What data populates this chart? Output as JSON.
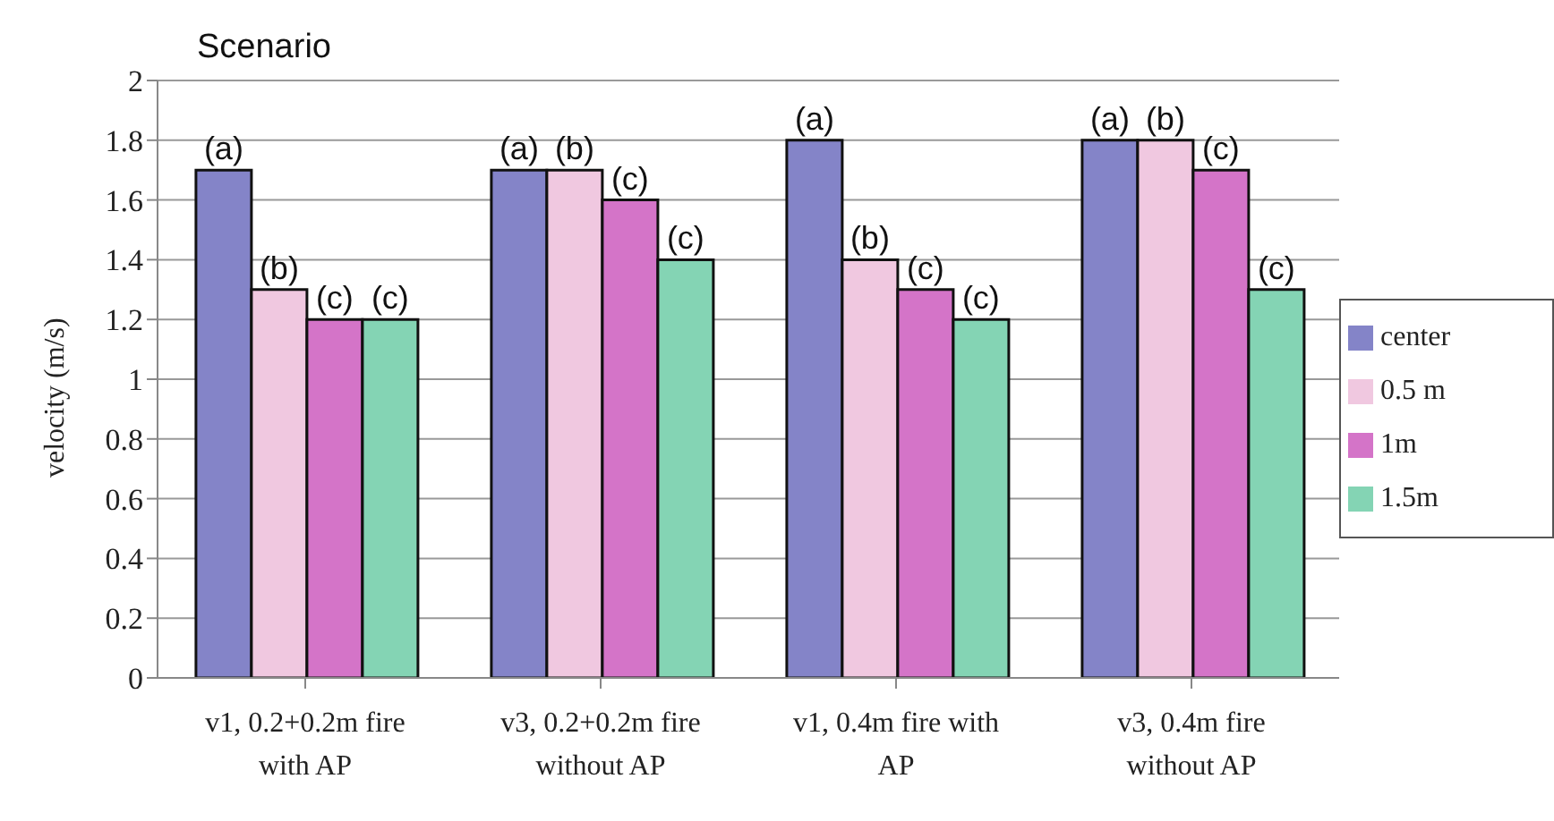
{
  "chart_data": {
    "type": "bar",
    "title": "Scenario",
    "ylabel": "velocity (m/s)",
    "categories": [
      "v1,  0.2+0.2m fire with AP",
      "v3, 0.2+0.2m fire without AP",
      "v1, 0.4m fire with AP",
      "v3, 0.4m fire without AP"
    ],
    "series": [
      {
        "name": "center",
        "color": "#8484c8",
        "values": [
          1.7,
          1.7,
          1.8,
          1.8
        ],
        "value_labels": [
          "(a)",
          "(a)",
          "(a)",
          "(a)"
        ]
      },
      {
        "name": "0.5 m",
        "color": "#f0c8e0",
        "values": [
          1.3,
          1.7,
          1.4,
          1.8
        ],
        "value_labels": [
          "(b)",
          "(b)",
          "(b)",
          "(b)"
        ]
      },
      {
        "name": "1m",
        "color": "#d474c8",
        "values": [
          1.2,
          1.6,
          1.3,
          1.7
        ],
        "value_labels": [
          "(c)",
          "(c)",
          "(c)",
          "(c)"
        ]
      },
      {
        "name": "1.5m",
        "color": "#84d4b4",
        "values": [
          1.2,
          1.4,
          1.2,
          1.3
        ],
        "value_labels": [
          "(c)",
          "(c)",
          "(c)",
          "(c)"
        ]
      }
    ],
    "ylim": [
      0,
      2
    ],
    "yticks": [
      0,
      0.2,
      0.4,
      0.6,
      0.8,
      1,
      1.2,
      1.4,
      1.6,
      1.8,
      2
    ],
    "grid": "y",
    "legend": "right"
  }
}
